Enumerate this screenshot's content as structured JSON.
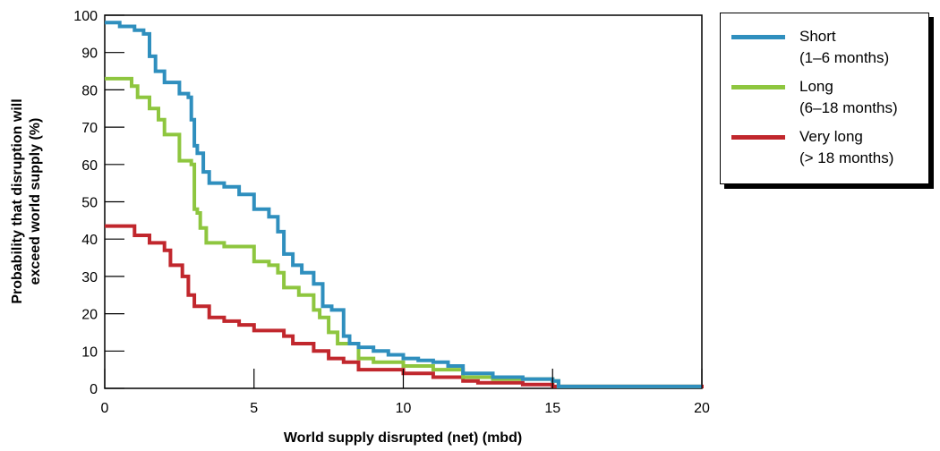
{
  "chart_data": {
    "type": "line",
    "xlabel": "World supply disrupted (net) (mbd)",
    "ylabel_line1": "Probability that disruption will",
    "ylabel_line2": "exceed world supply (%)",
    "xlim": [
      0,
      20
    ],
    "ylim": [
      0,
      100
    ],
    "x_ticks": [
      0,
      5,
      10,
      15,
      20
    ],
    "y_ticks": [
      0,
      10,
      20,
      30,
      40,
      50,
      60,
      70,
      80,
      90,
      100
    ],
    "grid": false,
    "legend_position": "right",
    "series": [
      {
        "name": "Short",
        "detail": "(1–6 months)",
        "color": "#2f8fbe",
        "points": [
          [
            0,
            98
          ],
          [
            0.5,
            97
          ],
          [
            1,
            96
          ],
          [
            1.3,
            95
          ],
          [
            1.5,
            89
          ],
          [
            1.7,
            85
          ],
          [
            2,
            82
          ],
          [
            2.5,
            79
          ],
          [
            2.8,
            78
          ],
          [
            2.9,
            72
          ],
          [
            3,
            65
          ],
          [
            3.1,
            63
          ],
          [
            3.3,
            58
          ],
          [
            3.5,
            55
          ],
          [
            4,
            54
          ],
          [
            4.5,
            52
          ],
          [
            5,
            48
          ],
          [
            5.5,
            46
          ],
          [
            5.8,
            42
          ],
          [
            6,
            36
          ],
          [
            6.3,
            33
          ],
          [
            6.6,
            31
          ],
          [
            7,
            28
          ],
          [
            7.3,
            22
          ],
          [
            7.6,
            21
          ],
          [
            8,
            14
          ],
          [
            8.2,
            12
          ],
          [
            8.5,
            11
          ],
          [
            9,
            10
          ],
          [
            9.5,
            9
          ],
          [
            10,
            8
          ],
          [
            10.5,
            7.5
          ],
          [
            11,
            7
          ],
          [
            11.5,
            6
          ],
          [
            12,
            4
          ],
          [
            13,
            3
          ],
          [
            14,
            2.5
          ],
          [
            15,
            2
          ],
          [
            15.2,
            2
          ],
          [
            15.2,
            0.5
          ],
          [
            18,
            0.5
          ],
          [
            19.5,
            0.5
          ],
          [
            20,
            0.5
          ]
        ]
      },
      {
        "name": "Long",
        "detail": "(6–18 months)",
        "color": "#8ec63f",
        "points": [
          [
            0,
            83
          ],
          [
            0.9,
            81
          ],
          [
            1.1,
            78
          ],
          [
            1.5,
            75
          ],
          [
            1.8,
            72
          ],
          [
            2,
            68
          ],
          [
            2.5,
            61
          ],
          [
            2.9,
            60
          ],
          [
            3,
            48
          ],
          [
            3.1,
            47
          ],
          [
            3.2,
            43
          ],
          [
            3.4,
            39
          ],
          [
            4,
            38
          ],
          [
            5,
            34
          ],
          [
            5.5,
            33
          ],
          [
            5.8,
            31
          ],
          [
            6,
            27
          ],
          [
            6.5,
            25
          ],
          [
            7,
            21
          ],
          [
            7.2,
            19
          ],
          [
            7.5,
            15
          ],
          [
            7.8,
            12
          ],
          [
            8.5,
            8
          ],
          [
            9,
            7
          ],
          [
            10,
            6
          ],
          [
            11,
            5
          ],
          [
            12,
            3
          ],
          [
            13,
            2.5
          ],
          [
            15,
            2
          ],
          [
            15.2,
            0.5
          ],
          [
            20,
            0.5
          ]
        ]
      },
      {
        "name": "Very long",
        "detail": "(> 18 months)",
        "color": "#c1272d",
        "points": [
          [
            0,
            43.5
          ],
          [
            1,
            41
          ],
          [
            1.5,
            39
          ],
          [
            2,
            37
          ],
          [
            2.2,
            33
          ],
          [
            2.6,
            30
          ],
          [
            2.8,
            25
          ],
          [
            3,
            22
          ],
          [
            3.5,
            19
          ],
          [
            4,
            18
          ],
          [
            4.5,
            17
          ],
          [
            5,
            15.5
          ],
          [
            6,
            14
          ],
          [
            6.3,
            12
          ],
          [
            7,
            10
          ],
          [
            7.5,
            8
          ],
          [
            8,
            7
          ],
          [
            8.5,
            5
          ],
          [
            10,
            4
          ],
          [
            11,
            3
          ],
          [
            12,
            2
          ],
          [
            12.5,
            1.5
          ],
          [
            14,
            1
          ],
          [
            15,
            0.5
          ],
          [
            18,
            0.5
          ],
          [
            20,
            0
          ]
        ]
      }
    ]
  }
}
